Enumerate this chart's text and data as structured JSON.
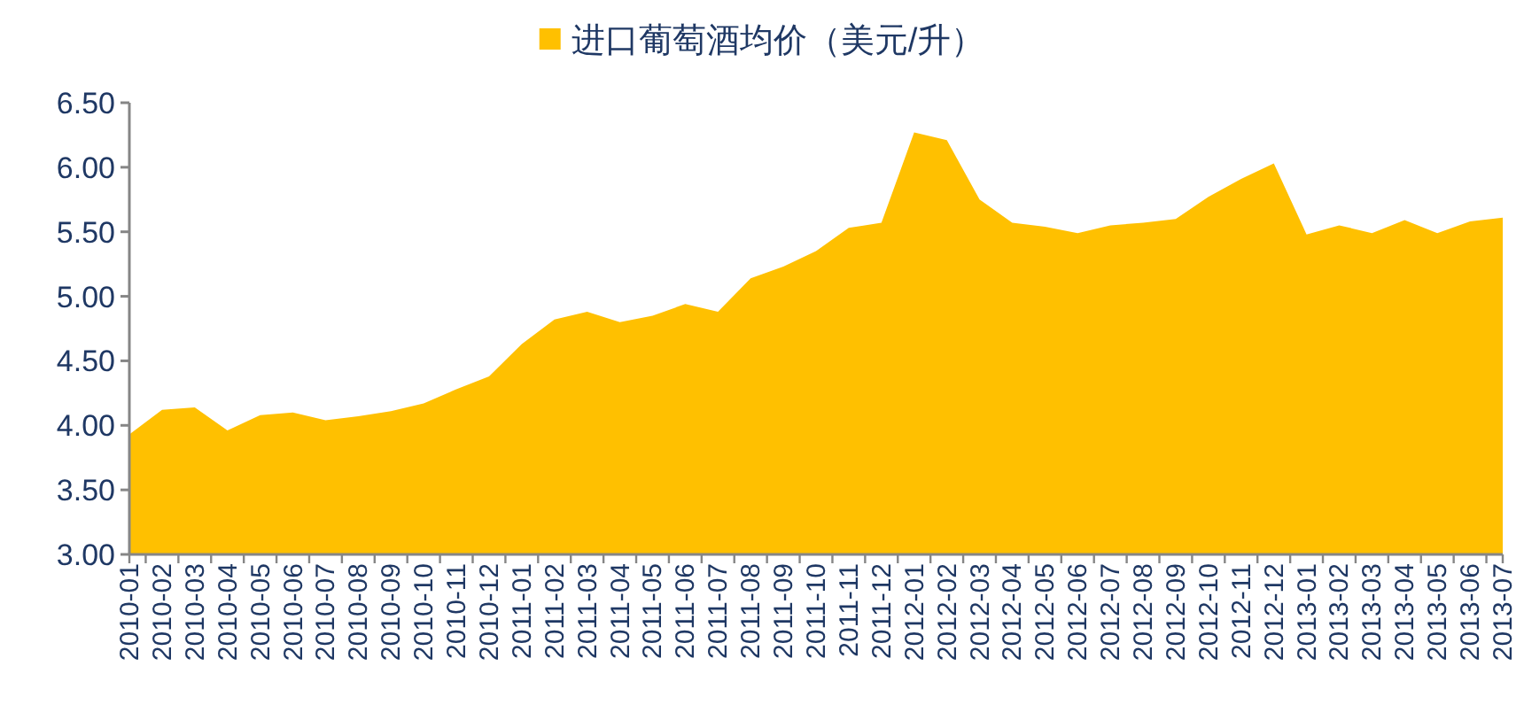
{
  "chart_data": {
    "type": "area",
    "categories": [
      "2010-01",
      "2010-02",
      "2010-03",
      "2010-04",
      "2010-05",
      "2010-06",
      "2010-07",
      "2010-08",
      "2010-09",
      "2010-10",
      "2010-11",
      "2010-12",
      "2011-01",
      "2011-02",
      "2011-03",
      "2011-04",
      "2011-05",
      "2011-06",
      "2011-07",
      "2011-08",
      "2011-09",
      "2011-10",
      "2011-11",
      "2011-12",
      "2012-01",
      "2012-02",
      "2012-03",
      "2012-04",
      "2012-05",
      "2012-06",
      "2012-07",
      "2012-08",
      "2012-09",
      "2012-10",
      "2012-11",
      "2012-12",
      "2013-01",
      "2013-02",
      "2013-03",
      "2013-04",
      "2013-05",
      "2013-06",
      "2013-07"
    ],
    "series": [
      {
        "name": "进口葡萄酒均价（美元/升）",
        "color": "#ffc000",
        "values": [
          3.93,
          4.12,
          4.14,
          3.96,
          4.08,
          4.1,
          4.04,
          4.07,
          4.11,
          4.17,
          4.28,
          4.38,
          4.63,
          4.82,
          4.88,
          4.8,
          4.85,
          4.94,
          4.88,
          5.14,
          5.23,
          5.35,
          5.53,
          5.57,
          6.27,
          6.21,
          5.75,
          5.57,
          5.54,
          5.49,
          5.55,
          5.57,
          5.6,
          5.77,
          5.91,
          6.03,
          5.48,
          5.55,
          5.49,
          5.59,
          5.49,
          5.58,
          5.61
        ]
      }
    ],
    "ylim": [
      3.0,
      6.5
    ],
    "yticks": [
      {
        "value": 3.0,
        "label": "3.00"
      },
      {
        "value": 3.5,
        "label": "3.50"
      },
      {
        "value": 4.0,
        "label": "4.00"
      },
      {
        "value": 4.5,
        "label": "4.50"
      },
      {
        "value": 5.0,
        "label": "5.00"
      },
      {
        "value": 5.5,
        "label": "5.50"
      },
      {
        "value": 6.0,
        "label": "6.00"
      },
      {
        "value": 6.5,
        "label": "6.50"
      }
    ],
    "grid": false,
    "legend": "top"
  }
}
